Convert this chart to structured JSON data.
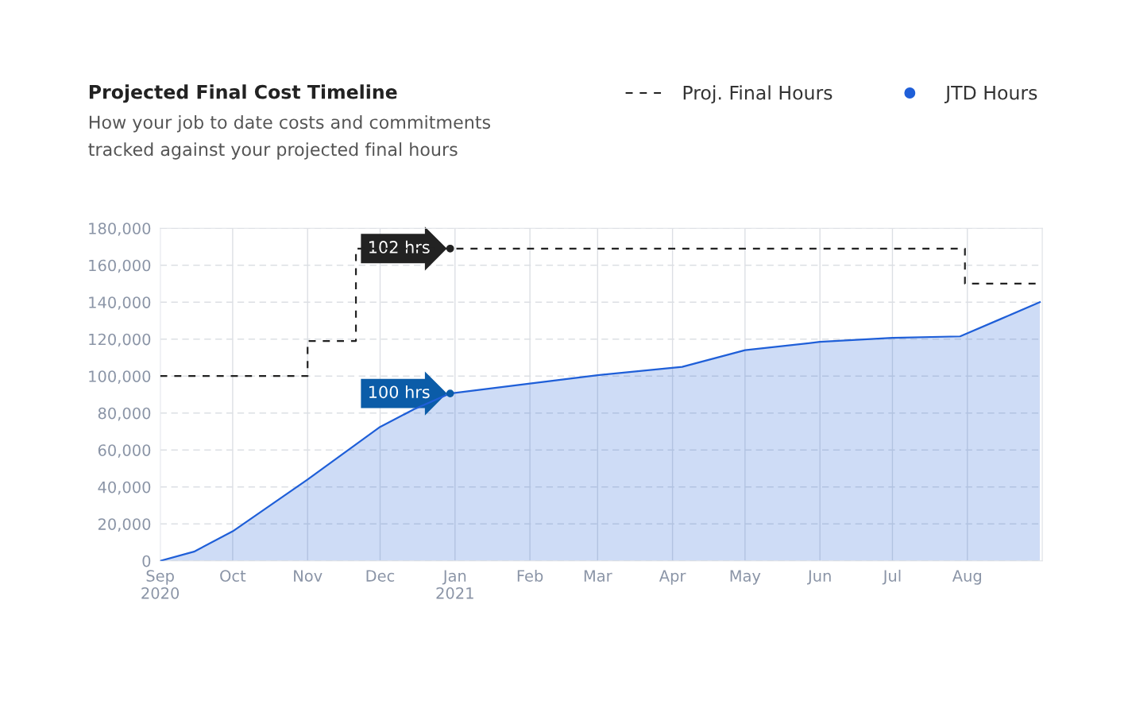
{
  "chart_data": {
    "type": "area",
    "title": "Projected Final Cost Timeline",
    "subtitle": "How your job to date costs and commitments\ntracked against your projected final hours",
    "series": [
      {
        "name": "Proj. Final Hours",
        "type": "step",
        "color": "#222222",
        "line_style": "dashed",
        "x": [
          "2020-09-01",
          "2020-11-01",
          "2020-11-21",
          "2021-07-31",
          "2021-09-01"
        ],
        "values": [
          100000,
          119000,
          169000,
          150000,
          150000
        ]
      },
      {
        "name": "JTD Hours",
        "color": "#1f5fd8",
        "line_style": "solid",
        "x": [
          "2020-09-01",
          "2020-09-15",
          "2020-10-01",
          "2020-11-01",
          "2020-12-01",
          "2020-12-15",
          "2020-12-30",
          "2021-02-01",
          "2021-03-01",
          "2021-04-05",
          "2021-05-01",
          "2021-06-01",
          "2021-07-01",
          "2021-07-29",
          "2021-08-15",
          "2021-08-31"
        ],
        "values": [
          0,
          5000,
          16000,
          44000,
          72500,
          82000,
          90600,
          96000,
          100500,
          105000,
          114000,
          118500,
          120700,
          121500,
          131000,
          140000
        ]
      }
    ],
    "annotations": [
      {
        "text": "102 hrs",
        "x": "2020-12-30",
        "y": 169000
      },
      {
        "text": "100 hrs",
        "x": "2020-12-30",
        "y": 90600
      }
    ],
    "xlim": [
      "2020-09-01",
      "2021-09-01"
    ],
    "xticks": [
      {
        "value": "2020-09-01",
        "label": "Sep\n2020"
      },
      {
        "value": "2020-10-01",
        "label": "Oct"
      },
      {
        "value": "2020-11-01",
        "label": "Nov"
      },
      {
        "value": "2020-12-01",
        "label": "Dec"
      },
      {
        "value": "2021-01-01",
        "label": "Jan\n2021"
      },
      {
        "value": "2021-02-01",
        "label": "Feb"
      },
      {
        "value": "2021-03-01",
        "label": "Mar"
      },
      {
        "value": "2021-04-01",
        "label": "Apr"
      },
      {
        "value": "2021-05-01",
        "label": "May"
      },
      {
        "value": "2021-06-01",
        "label": "Jun"
      },
      {
        "value": "2021-07-01",
        "label": "Jul"
      },
      {
        "value": "2021-08-01",
        "label": "Aug"
      }
    ],
    "ylim": [
      0,
      180000
    ],
    "yticks": [
      {
        "value": 0,
        "label": "0"
      },
      {
        "value": 20000,
        "label": "20,000"
      },
      {
        "value": 40000,
        "label": "40,000"
      },
      {
        "value": 60000,
        "label": "60,000"
      },
      {
        "value": 80000,
        "label": "80,000"
      },
      {
        "value": 100000,
        "label": "100,000"
      },
      {
        "value": 120000,
        "label": "120,000"
      },
      {
        "value": 140000,
        "label": "140,000"
      },
      {
        "value": 160000,
        "label": "160,000"
      },
      {
        "value": 180000,
        "label": "180,000"
      }
    ],
    "grid": true,
    "legend": "top right"
  }
}
